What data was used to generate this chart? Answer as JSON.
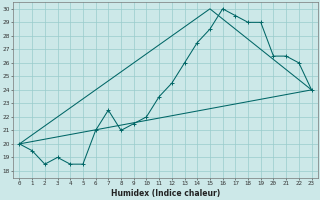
{
  "title": "",
  "xlabel": "Humidex (Indice chaleur)",
  "ylabel": "",
  "bg_color": "#cce8e8",
  "line_color": "#006666",
  "grid_color": "#99cccc",
  "xlim": [
    -0.5,
    23.5
  ],
  "ylim": [
    17.5,
    30.5
  ],
  "yticks": [
    18,
    19,
    20,
    21,
    22,
    23,
    24,
    25,
    26,
    27,
    28,
    29,
    30
  ],
  "xticks": [
    0,
    1,
    2,
    3,
    4,
    5,
    6,
    7,
    8,
    9,
    10,
    11,
    12,
    13,
    14,
    15,
    16,
    17,
    18,
    19,
    20,
    21,
    22,
    23
  ],
  "xtick_labels": [
    "0",
    "1",
    "2",
    "3",
    "4",
    "5",
    "6",
    "7",
    "8",
    "9",
    "10",
    "11",
    "12",
    "13",
    "14",
    "15",
    "16",
    "17",
    "18",
    "19",
    "20",
    "21",
    "22",
    "23"
  ],
  "series1_x": [
    0,
    1,
    2,
    3,
    4,
    5,
    6,
    7,
    8,
    9,
    10,
    11,
    12,
    13,
    14,
    15,
    16,
    17,
    18,
    19,
    20,
    21,
    22,
    23
  ],
  "series1_y": [
    20.0,
    19.5,
    18.5,
    19.0,
    18.5,
    18.5,
    21.0,
    22.5,
    21.0,
    21.5,
    22.0,
    23.5,
    24.5,
    26.0,
    27.5,
    28.5,
    30.0,
    29.5,
    29.0,
    29.0,
    26.5,
    26.5,
    26.0,
    24.0
  ],
  "series2_x": [
    0,
    23
  ],
  "series2_y": [
    20.0,
    24.0
  ],
  "series3_x": [
    0,
    15,
    23
  ],
  "series3_y": [
    20.0,
    30.0,
    24.0
  ],
  "tick_fontsize": 4.2,
  "xlabel_fontsize": 5.5
}
